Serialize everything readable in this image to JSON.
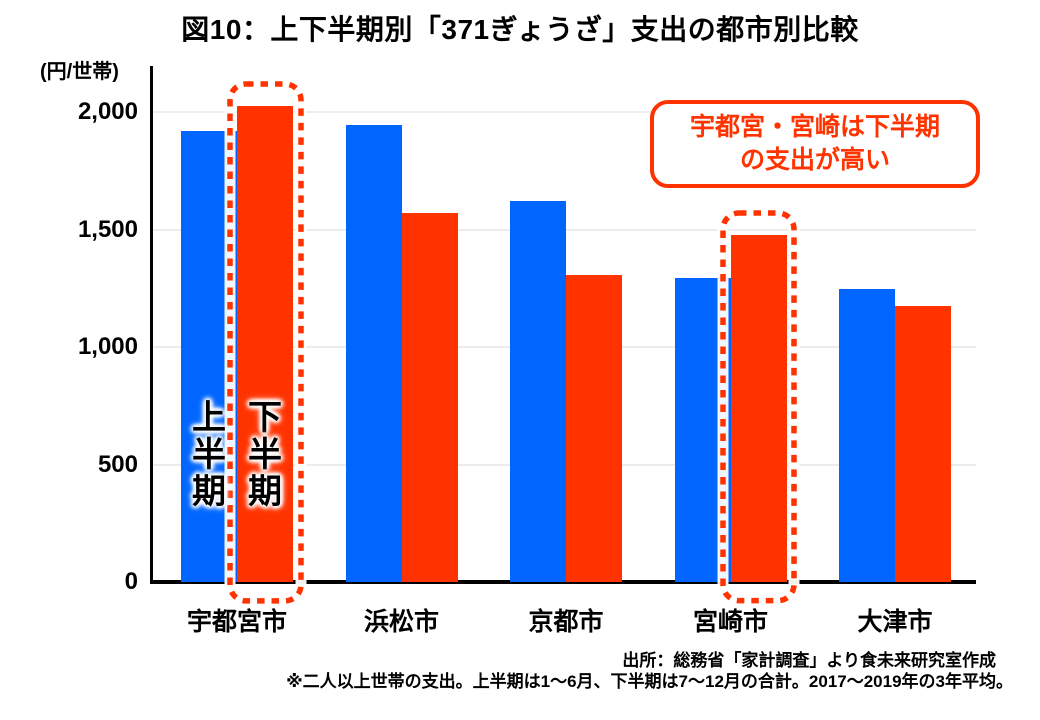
{
  "title": "図10：上下半期別「371ぎょうざ」支出の都市別比較",
  "unit_label": "(円/世帯)",
  "annotation": {
    "line1": "宇都宮・宮崎は下半期",
    "line2": "の支出が高い"
  },
  "footer": {
    "source": "出所：総務省「家計調査」より食未来研究室作成",
    "note": "※二人以上世帯の支出。上半期は1～6月、下半期は7～12月の合計。2017～2019年の3年平均。"
  },
  "colors": {
    "first_half": "#0066ff",
    "second_half": "#ff3300",
    "highlight_outline": "#ff3300",
    "annotation_text": "#ff3300",
    "gridline": "#ececec",
    "axis": "#000000"
  },
  "chart_data": {
    "type": "bar",
    "categories": [
      "宇都宮市",
      "浜松市",
      "京都市",
      "宮崎市",
      "大津市"
    ],
    "series": [
      {
        "name": "上半期",
        "color_key": "first_half",
        "values": [
          1920,
          1945,
          1620,
          1295,
          1245
        ]
      },
      {
        "name": "下半期",
        "color_key": "second_half",
        "values": [
          2025,
          1570,
          1305,
          1475,
          1175
        ]
      }
    ],
    "ylabel": "(円/世帯)",
    "ylim": [
      0,
      2000
    ],
    "yticks": [
      0,
      500,
      1000,
      1500,
      2000
    ],
    "ytick_labels": [
      "0",
      "500",
      "1,000",
      "1,500",
      "2,000"
    ],
    "grid": true,
    "legend_position": "in-bar-first-category",
    "in_bar_labels": [
      "上半期",
      "下半期"
    ],
    "highlighted_categories": [
      "宇都宮市",
      "宮崎市"
    ],
    "highlight_series": "下半期"
  }
}
